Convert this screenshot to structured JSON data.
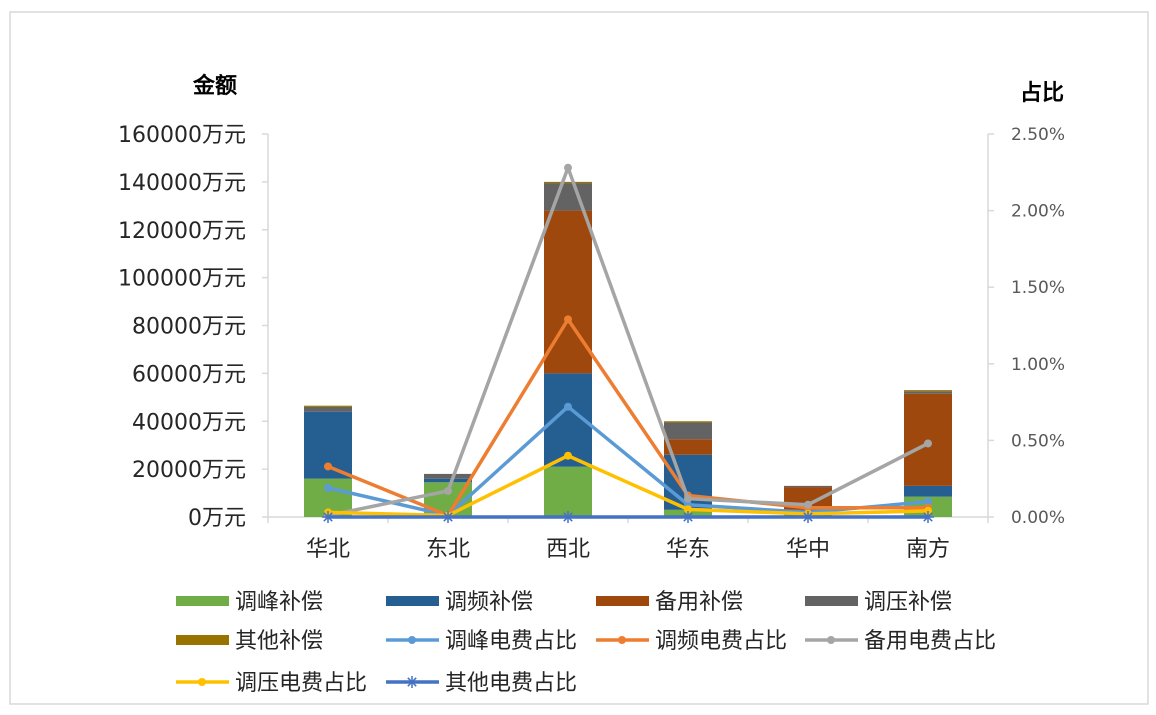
{
  "chart_data": {
    "type": "bar",
    "categories": [
      "华北",
      "东北",
      "西北",
      "华东",
      "华中",
      "南方"
    ],
    "left_axis_title": "金额",
    "right_axis_title": "占比",
    "y_left": {
      "min": 0,
      "max": 160000,
      "step": 20000,
      "tick_labels": [
        "0万元",
        "20000万元",
        "40000万元",
        "60000万元",
        "80000万元",
        "100000万元",
        "120000万元",
        "140000万元",
        "160000万元"
      ]
    },
    "y_right": {
      "min": 0,
      "max": 0.025,
      "step": 0.005,
      "tick_labels": [
        "0.00%",
        "0.50%",
        "1.00%",
        "1.50%",
        "2.00%",
        "2.50%"
      ]
    },
    "bar_series": [
      {
        "name": "调峰补偿",
        "color": "#70AD47",
        "values": [
          16000,
          14500,
          21000,
          3000,
          1000,
          8500
        ]
      },
      {
        "name": "调频补偿",
        "color": "#255E91",
        "values": [
          28000,
          1500,
          39000,
          23000,
          2000,
          4500
        ]
      },
      {
        "name": "备用补偿",
        "color": "#9E480E",
        "values": [
          0,
          0,
          68000,
          6500,
          9500,
          38500
        ]
      },
      {
        "name": "调压补偿",
        "color": "#636363",
        "values": [
          2000,
          2000,
          11500,
          7000,
          500,
          1000
        ]
      },
      {
        "name": "其他补偿",
        "color": "#997300",
        "values": [
          500,
          0,
          500,
          500,
          0,
          500
        ]
      }
    ],
    "line_series": [
      {
        "name": "调峰电费占比",
        "color": "#5B9BD5",
        "marker": "dot",
        "values": [
          0.0019,
          0.0001,
          0.0072,
          0.0008,
          0.0003,
          0.001
        ]
      },
      {
        "name": "调频电费占比",
        "color": "#ED7D31",
        "marker": "dot",
        "values": [
          0.0033,
          0.0001,
          0.0129,
          0.0014,
          0.0006,
          0.0006
        ]
      },
      {
        "name": "备用电费占比",
        "color": "#A5A5A5",
        "marker": "dot",
        "values": [
          0.0001,
          0.0017,
          0.0228,
          0.0012,
          0.0008,
          0.0048
        ]
      },
      {
        "name": "调压电费占比",
        "color": "#FFC000",
        "marker": "dot",
        "values": [
          0.0003,
          0.0001,
          0.004,
          0.0005,
          0.0002,
          0.0004
        ]
      },
      {
        "name": "其他电费占比",
        "color": "#4472C4",
        "marker": "star",
        "values": [
          0,
          0,
          0,
          0,
          0,
          0
        ]
      }
    ],
    "legend_placement": "bottom",
    "grid": false
  }
}
